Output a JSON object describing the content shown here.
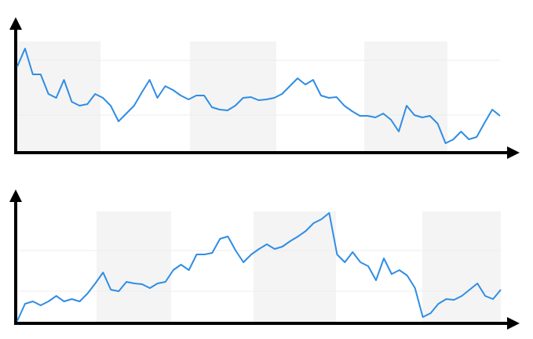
{
  "chart_data": [
    {
      "type": "line",
      "color": "#2f8de4",
      "x": [
        0,
        1,
        2,
        3,
        4,
        5,
        6,
        7,
        8,
        9,
        10,
        11,
        12,
        13,
        14,
        15,
        16,
        17,
        18,
        19,
        20,
        21,
        22,
        23,
        24,
        25,
        26,
        27,
        28,
        29,
        30,
        31,
        32,
        33,
        34,
        35,
        36,
        37,
        38,
        39,
        40,
        41,
        42,
        43,
        44,
        45,
        46,
        47,
        48,
        49,
        50,
        51,
        52,
        53,
        54,
        55,
        56,
        57,
        58,
        59,
        60,
        61,
        62
      ],
      "values": [
        110,
        133,
        100,
        100,
        75,
        70,
        93,
        65,
        60,
        62,
        75,
        70,
        60,
        40,
        50,
        60,
        77,
        93,
        70,
        85,
        80,
        73,
        68,
        73,
        73,
        58,
        55,
        54,
        60,
        70,
        71,
        67,
        68,
        70,
        75,
        85,
        95,
        87,
        93,
        73,
        70,
        71,
        60,
        53,
        47,
        47,
        45,
        50,
        42,
        27,
        60,
        48,
        45,
        47,
        37,
        12,
        17,
        27,
        17,
        20,
        38,
        55,
        47
      ],
      "xlim": [
        0,
        62
      ],
      "ylim": [
        0,
        140
      ]
    },
    {
      "type": "line",
      "color": "#2f8de4",
      "x": [
        0,
        1,
        2,
        3,
        4,
        5,
        6,
        7,
        8,
        9,
        10,
        11,
        12,
        13,
        14,
        15,
        16,
        17,
        18,
        19,
        20,
        21,
        22,
        23,
        24,
        25,
        26,
        27,
        28,
        29,
        30,
        31,
        32,
        33,
        34,
        35,
        36,
        37,
        38,
        39,
        40,
        41,
        42,
        43,
        44,
        45,
        46,
        47,
        48,
        49,
        50,
        51,
        52,
        53,
        54,
        55,
        56,
        57,
        58,
        59,
        60,
        61,
        62
      ],
      "values": [
        3,
        25,
        28,
        23,
        28,
        35,
        28,
        31,
        28,
        38,
        51,
        65,
        43,
        41,
        53,
        51,
        50,
        45,
        51,
        53,
        68,
        75,
        68,
        88,
        88,
        90,
        108,
        111,
        93,
        78,
        88,
        95,
        101,
        95,
        98,
        105,
        111,
        118,
        128,
        133,
        141,
        88,
        78,
        91,
        78,
        73,
        55,
        83,
        63,
        68,
        61,
        45,
        8,
        13,
        25,
        31,
        30,
        35,
        43,
        51,
        35,
        31,
        43
      ],
      "xlim": [
        0,
        62
      ],
      "ylim": [
        0,
        145
      ]
    }
  ]
}
